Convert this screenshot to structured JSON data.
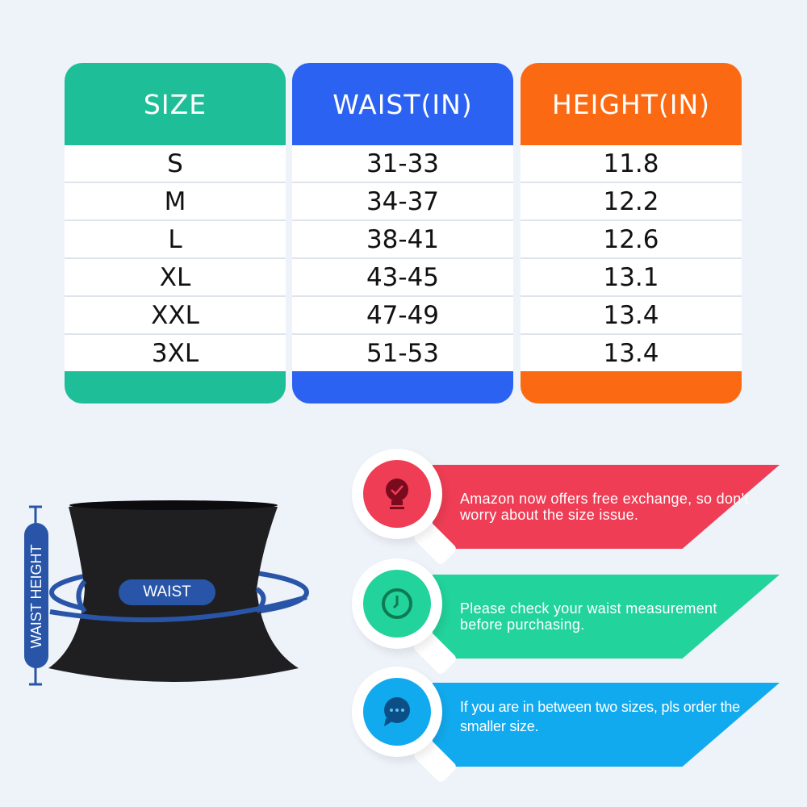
{
  "colors": {
    "size": "#1ebf98",
    "waist": "#2b62f2",
    "height": "#fb6a12",
    "background": "#eef2f9",
    "tip1": "#ee3d55",
    "tip2": "#22d39c",
    "tip3": "#12aaee",
    "label_blue": "#2855a8"
  },
  "table": {
    "headers": [
      "SIZE",
      "WAIST(IN)",
      "HEIGHT(IN)"
    ],
    "sizes": [
      "S",
      "M",
      "L",
      "XL",
      "XXL",
      "3XL"
    ],
    "waist": [
      "31-33",
      "34-37",
      "38-41",
      "43-45",
      "47-49",
      "51-53"
    ],
    "height": [
      "11.8",
      "12.2",
      "12.6",
      "13.1",
      "13.4",
      "13.4"
    ]
  },
  "diagram": {
    "waist_label": "WAIST",
    "height_label": "WAIST HEIGHT"
  },
  "tips": [
    {
      "icon": "lightbulb-check-icon",
      "text": "Amazon now offers free exchange, so don't worry about the size issue."
    },
    {
      "icon": "clock-icon",
      "text": "Please check your waist measurement before purchasing."
    },
    {
      "icon": "chat-bubble-icon",
      "text": "If you are in between two sizes, pls order the smaller size."
    }
  ]
}
